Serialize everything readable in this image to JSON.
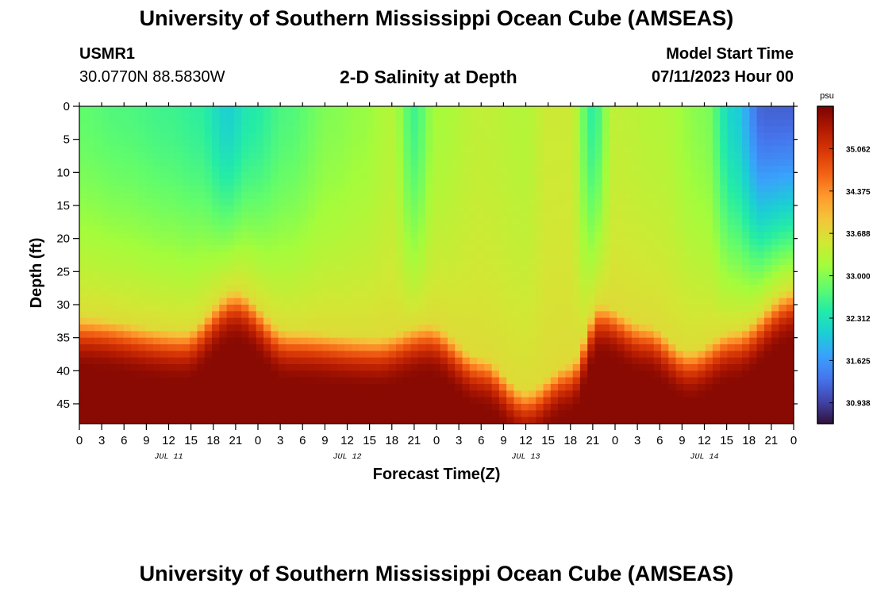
{
  "header": {
    "title": "University of Southern Mississippi Ocean Cube (AMSEAS)",
    "station_id": "USMR1",
    "station_coords": "30.0770N  88.5830W",
    "model_start_label": "Model Start Time",
    "model_start_value": "07/11/2023 Hour 00"
  },
  "footer": {
    "title": "University of Southern Mississippi Ocean Cube (AMSEAS)"
  },
  "colors": {
    "colormap": [
      "#30123b",
      "#4145ab",
      "#4675ed",
      "#39a2fc",
      "#1bcfd4",
      "#24eca6",
      "#61fc6c",
      "#a4fc3b",
      "#d1e834",
      "#f3c63a",
      "#fe9b2d",
      "#f36315",
      "#d93806",
      "#b11901",
      "#7a0402"
    ]
  },
  "chart_data": {
    "type": "heatmap",
    "title": "2-D Salinity at Depth",
    "xlabel": "Forecast Time(Z)",
    "ylabel": "Depth (ft)",
    "x_tick_labels": [
      "0",
      "3",
      "6",
      "9",
      "12",
      "15",
      "18",
      "21",
      "0",
      "3",
      "6",
      "9",
      "12",
      "15",
      "18",
      "21",
      "0",
      "3",
      "6",
      "9",
      "12",
      "15",
      "18",
      "21",
      "0",
      "3",
      "6",
      "9",
      "12",
      "15",
      "18",
      "21",
      "0"
    ],
    "x_range_hours": [
      0,
      96
    ],
    "day_labels": [
      {
        "label": "JUL 11",
        "hour": 12
      },
      {
        "label": "JUL 12",
        "hour": 36
      },
      {
        "label": "JUL 13",
        "hour": 60
      },
      {
        "label": "JUL 14",
        "hour": 84
      }
    ],
    "y_tick_labels": [
      "0",
      "5",
      "10",
      "15",
      "20",
      "25",
      "30",
      "35",
      "40",
      "45"
    ],
    "y_range_ft": [
      0,
      48
    ],
    "colorbar": {
      "unit": "psu",
      "range": [
        30.6,
        35.75
      ],
      "tick_labels": [
        "35.062",
        "34.375",
        "33.688",
        "33.000",
        "32.312",
        "31.625",
        "30.938"
      ]
    },
    "surface_salinity_psu": [
      {
        "hour": 0,
        "value": 32.8
      },
      {
        "hour": 6,
        "value": 32.7
      },
      {
        "hour": 12,
        "value": 32.6
      },
      {
        "hour": 16,
        "value": 32.5
      },
      {
        "hour": 20,
        "value": 32.1
      },
      {
        "hour": 23,
        "value": 32.4
      },
      {
        "hour": 28,
        "value": 32.7
      },
      {
        "hour": 34,
        "value": 33.0
      },
      {
        "hour": 38,
        "value": 33.1
      },
      {
        "hour": 42,
        "value": 33.3
      },
      {
        "hour": 45,
        "value": 32.6
      },
      {
        "hour": 48,
        "value": 33.2
      },
      {
        "hour": 54,
        "value": 33.4
      },
      {
        "hour": 60,
        "value": 33.3
      },
      {
        "hour": 63,
        "value": 33.5
      },
      {
        "hour": 66,
        "value": 33.5
      },
      {
        "hour": 69,
        "value": 32.5
      },
      {
        "hour": 72,
        "value": 33.4
      },
      {
        "hour": 78,
        "value": 33.3
      },
      {
        "hour": 84,
        "value": 33.0
      },
      {
        "hour": 88,
        "value": 32.1
      },
      {
        "hour": 92,
        "value": 31.2
      },
      {
        "hour": 96,
        "value": 31.2
      }
    ],
    "bottom_layer_top_ft": [
      {
        "hour": 0,
        "value": 32
      },
      {
        "hour": 14,
        "value": 34
      },
      {
        "hour": 21,
        "value": 28
      },
      {
        "hour": 28,
        "value": 34
      },
      {
        "hour": 40,
        "value": 35
      },
      {
        "hour": 47,
        "value": 33
      },
      {
        "hour": 54,
        "value": 38
      },
      {
        "hour": 60,
        "value": 43
      },
      {
        "hour": 66,
        "value": 39
      },
      {
        "hour": 70,
        "value": 30
      },
      {
        "hour": 76,
        "value": 33
      },
      {
        "hour": 82,
        "value": 37
      },
      {
        "hour": 88,
        "value": 34
      },
      {
        "hour": 96,
        "value": 28
      }
    ]
  }
}
